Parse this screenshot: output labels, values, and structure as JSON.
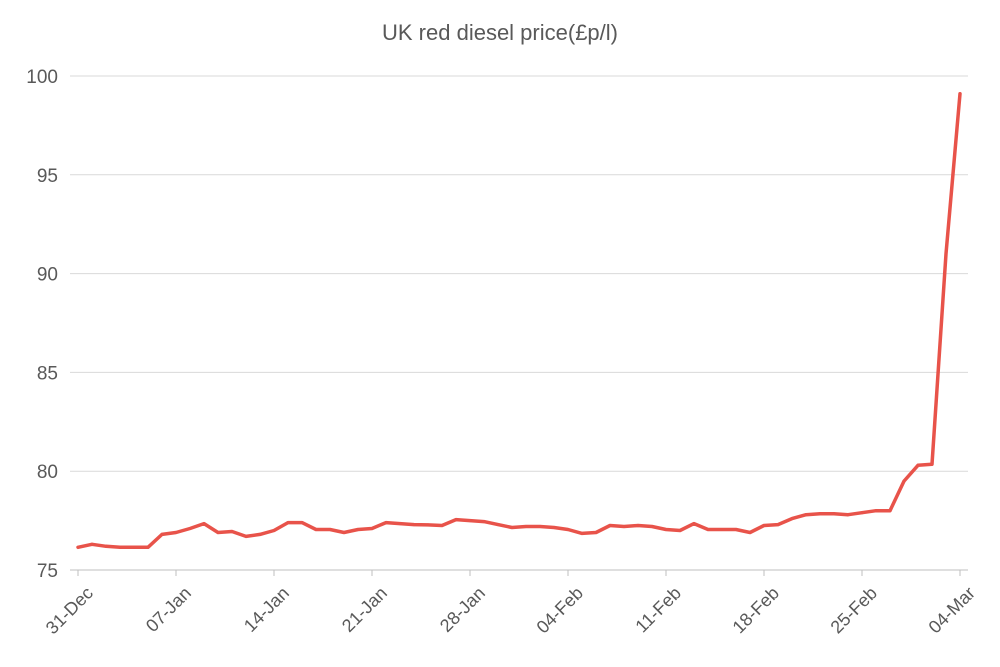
{
  "chart_data": {
    "type": "line",
    "title": "UK red diesel price(£p/l)",
    "xlabel": "",
    "ylabel": "",
    "ylim": [
      75,
      100
    ],
    "yticks": [
      75,
      80,
      85,
      90,
      95,
      100
    ],
    "grid": true,
    "legend": "none",
    "line_color": "#E8534A",
    "x_labels": [
      "31-Dec",
      "07-Jan",
      "14-Jan",
      "21-Jan",
      "28-Jan",
      "04-Feb",
      "11-Feb",
      "18-Feb",
      "25-Feb",
      "04-Mar"
    ],
    "x": [
      "2021-12-31",
      "2022-01-01",
      "2022-01-02",
      "2022-01-03",
      "2022-01-04",
      "2022-01-05",
      "2022-01-06",
      "2022-01-07",
      "2022-01-08",
      "2022-01-09",
      "2022-01-10",
      "2022-01-11",
      "2022-01-12",
      "2022-01-13",
      "2022-01-14",
      "2022-01-15",
      "2022-01-16",
      "2022-01-17",
      "2022-01-18",
      "2022-01-19",
      "2022-01-20",
      "2022-01-21",
      "2022-01-22",
      "2022-01-23",
      "2022-01-24",
      "2022-01-25",
      "2022-01-26",
      "2022-01-27",
      "2022-01-28",
      "2022-01-29",
      "2022-01-30",
      "2022-01-31",
      "2022-02-01",
      "2022-02-02",
      "2022-02-03",
      "2022-02-04",
      "2022-02-05",
      "2022-02-06",
      "2022-02-07",
      "2022-02-08",
      "2022-02-09",
      "2022-02-10",
      "2022-02-11",
      "2022-02-12",
      "2022-02-13",
      "2022-02-14",
      "2022-02-15",
      "2022-02-16",
      "2022-02-17",
      "2022-02-18",
      "2022-02-19",
      "2022-02-20",
      "2022-02-21",
      "2022-02-22",
      "2022-02-23",
      "2022-02-24",
      "2022-02-25",
      "2022-02-26",
      "2022-02-27",
      "2022-02-28",
      "2022-03-01",
      "2022-03-02",
      "2022-03-03",
      "2022-03-04"
    ],
    "series": [
      {
        "values": [
          76.15,
          76.3,
          76.2,
          76.15,
          76.15,
          76.15,
          76.8,
          76.9,
          77.1,
          77.35,
          76.9,
          76.95,
          76.7,
          76.8,
          77.0,
          77.4,
          77.4,
          77.05,
          77.05,
          76.9,
          77.05,
          77.1,
          77.4,
          77.35,
          77.3,
          77.28,
          77.25,
          77.55,
          77.5,
          77.45,
          77.3,
          77.15,
          77.2,
          77.2,
          77.15,
          77.05,
          76.85,
          76.9,
          77.25,
          77.2,
          77.25,
          77.2,
          77.05,
          77.0,
          77.35,
          77.05,
          77.05,
          77.05,
          76.9,
          77.25,
          77.3,
          77.6,
          77.8,
          77.85,
          77.85,
          77.8,
          77.9,
          78.0,
          78.0,
          79.5,
          80.3,
          80.35,
          91.0,
          99.1
        ]
      }
    ]
  }
}
